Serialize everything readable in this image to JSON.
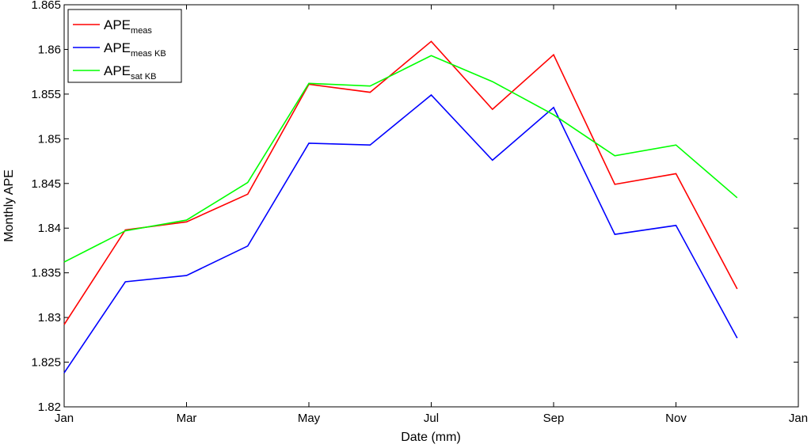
{
  "chart_data": {
    "type": "line",
    "xlabel": "Date (mm)",
    "ylabel": "Monthly APE",
    "x": [
      1,
      2,
      3,
      4,
      5,
      6,
      7,
      8,
      9,
      10,
      11,
      12
    ],
    "xlim": [
      1,
      13
    ],
    "ylim": [
      1.82,
      1.865
    ],
    "xticks": [
      {
        "value": 1,
        "label": "Jan"
      },
      {
        "value": 3,
        "label": "Mar"
      },
      {
        "value": 5,
        "label": "May"
      },
      {
        "value": 7,
        "label": "Jul"
      },
      {
        "value": 9,
        "label": "Sep"
      },
      {
        "value": 11,
        "label": "Nov"
      },
      {
        "value": 13,
        "label": "Jan"
      }
    ],
    "yticks": [
      {
        "value": 1.82,
        "label": "1.82"
      },
      {
        "value": 1.825,
        "label": "1.825"
      },
      {
        "value": 1.83,
        "label": "1.83"
      },
      {
        "value": 1.835,
        "label": "1.835"
      },
      {
        "value": 1.84,
        "label": "1.84"
      },
      {
        "value": 1.845,
        "label": "1.845"
      },
      {
        "value": 1.85,
        "label": "1.85"
      },
      {
        "value": 1.855,
        "label": "1.855"
      },
      {
        "value": 1.86,
        "label": "1.86"
      },
      {
        "value": 1.865,
        "label": "1.865"
      }
    ],
    "grid": false,
    "legend_position": "top-left",
    "series": [
      {
        "name": "APE",
        "subscript": "meas",
        "color": "#ff0000",
        "values": [
          1.8292,
          1.8398,
          1.8407,
          1.8438,
          1.8561,
          1.8552,
          1.8609,
          1.8533,
          1.8594,
          1.8449,
          1.8461,
          1.8332
        ]
      },
      {
        "name": "APE",
        "subscript": "meas KB",
        "color": "#0000ff",
        "values": [
          1.8238,
          1.834,
          1.8347,
          1.838,
          1.8495,
          1.8493,
          1.8549,
          1.8476,
          1.8535,
          1.8393,
          1.8403,
          1.8277
        ]
      },
      {
        "name": "APE",
        "subscript": "sat KB",
        "color": "#00ff00",
        "values": [
          1.8362,
          1.8397,
          1.8409,
          1.8451,
          1.8562,
          1.8559,
          1.8593,
          1.8564,
          1.8527,
          1.8481,
          1.8493,
          1.8434
        ]
      }
    ]
  }
}
